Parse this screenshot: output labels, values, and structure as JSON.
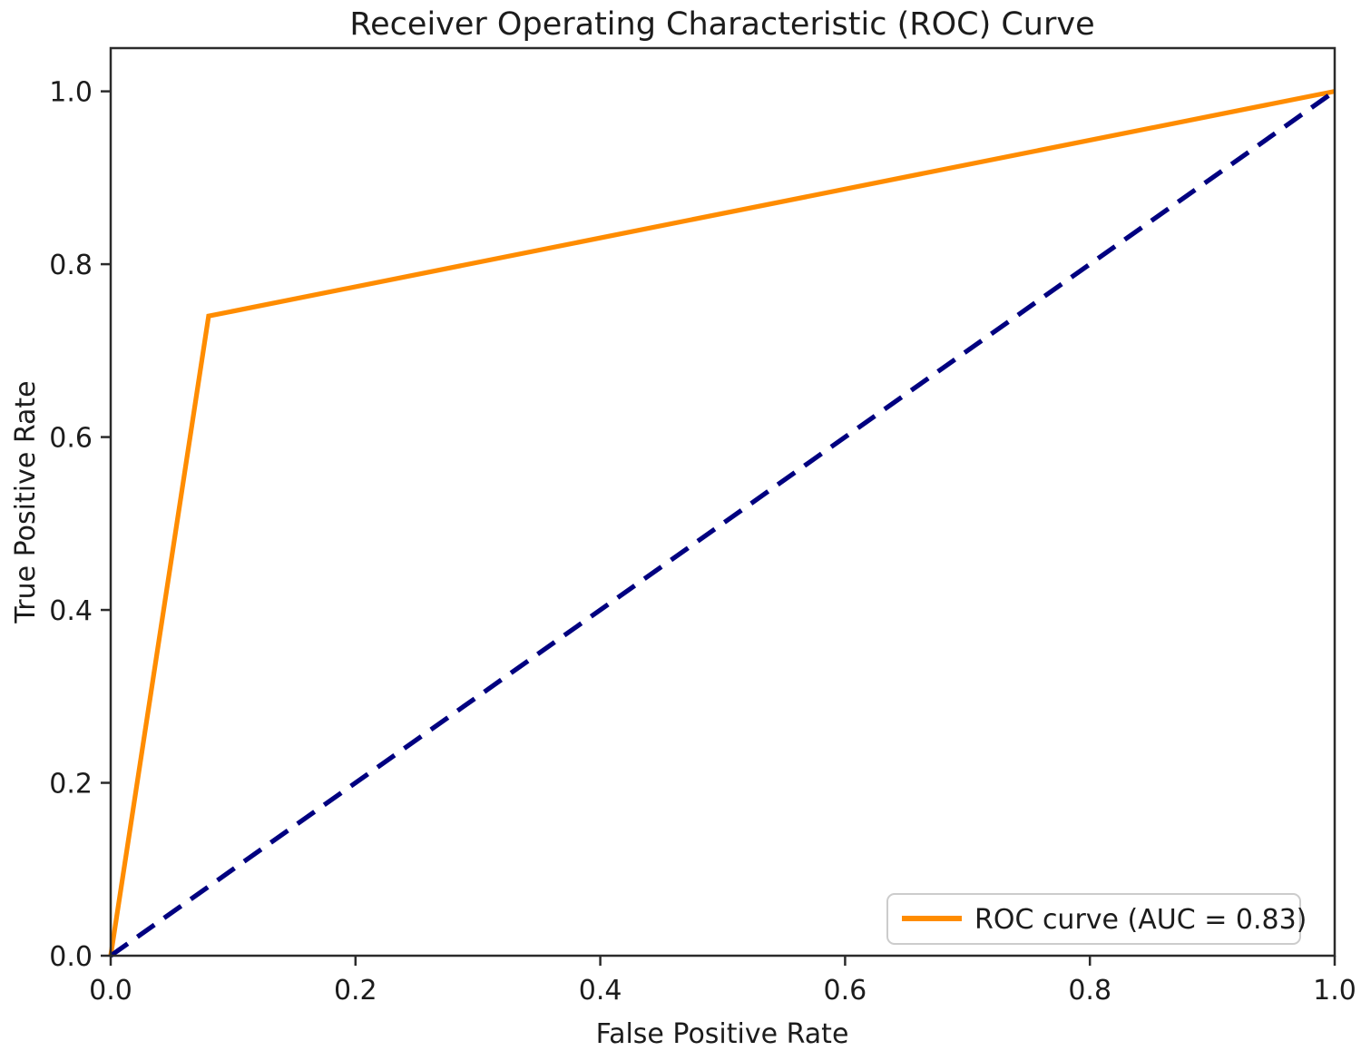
{
  "chart_data": {
    "type": "line",
    "title": "Receiver Operating Characteristic (ROC) Curve",
    "xlabel": "False Positive Rate",
    "ylabel": "True Positive Rate",
    "xlim": [
      0.0,
      1.0
    ],
    "ylim": [
      0.0,
      1.05
    ],
    "xticks": [
      0.0,
      0.2,
      0.4,
      0.6,
      0.8,
      1.0
    ],
    "yticks": [
      0.0,
      0.2,
      0.4,
      0.6,
      0.8,
      1.0
    ],
    "grid": false,
    "axis_color": "#2b2b2b",
    "background_color": "#ffffff",
    "auc": 0.83,
    "series": [
      {
        "name": "ROC curve",
        "data_name": "roc-curve-line",
        "color": "#ff8c00",
        "style": "solid",
        "line_width": 5.2,
        "x": [
          0.0,
          0.08,
          1.0
        ],
        "y": [
          0.0,
          0.74,
          1.0
        ]
      },
      {
        "name": "chance diagonal",
        "data_name": "chance-diagonal-line",
        "color": "#000080",
        "style": "dashed",
        "line_width": 5.2,
        "x": [
          0.0,
          1.0
        ],
        "y": [
          0.0,
          1.0
        ]
      }
    ],
    "legend": {
      "position": "lower right",
      "entries": [
        {
          "label": "ROC curve (AUC = 0.83)",
          "color": "#ff8c00"
        }
      ]
    }
  }
}
